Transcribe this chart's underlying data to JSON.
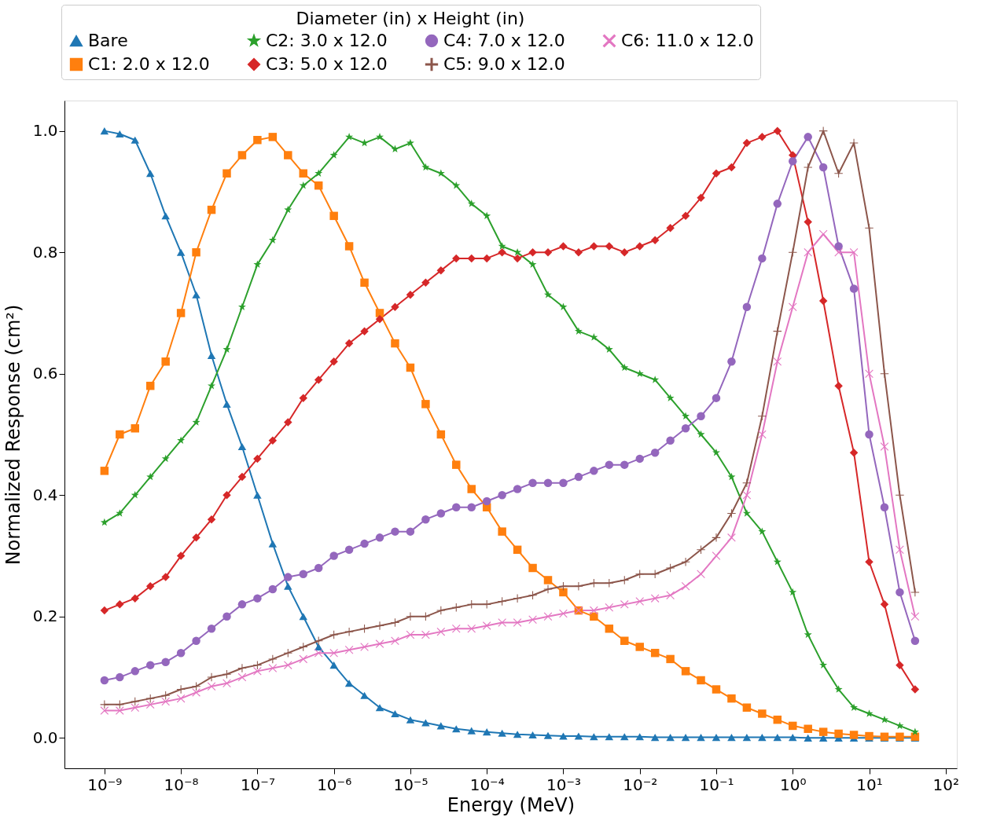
{
  "chart_data": {
    "type": "line",
    "xlabel": "Energy (MeV)",
    "ylabel": "Normalized Response (cm²)",
    "legend_title": "Diameter (in) x Height (in)",
    "log": "x",
    "grid": false,
    "legend": "top",
    "line_style": "solid",
    "xlim": [
      3e-10,
      140
    ],
    "ylim": [
      -0.05,
      1.05
    ],
    "xticks": [
      {
        "value": 1e-09,
        "label": "10⁻⁹"
      },
      {
        "value": 1e-08,
        "label": "10⁻⁸"
      },
      {
        "value": 1e-07,
        "label": "10⁻⁷"
      },
      {
        "value": 1e-06,
        "label": "10⁻⁶"
      },
      {
        "value": 1e-05,
        "label": "10⁻⁵"
      },
      {
        "value": 0.0001,
        "label": "10⁻⁴"
      },
      {
        "value": 0.001,
        "label": "10⁻³"
      },
      {
        "value": 0.01,
        "label": "10⁻²"
      },
      {
        "value": 0.1,
        "label": "10⁻¹"
      },
      {
        "value": 1,
        "label": "10⁰"
      },
      {
        "value": 10,
        "label": "10¹"
      },
      {
        "value": 100,
        "label": "10²"
      }
    ],
    "yticks": [
      {
        "value": 0,
        "label": "0.0"
      },
      {
        "value": 0.2,
        "label": "0.2"
      },
      {
        "value": 0.4,
        "label": "0.4"
      },
      {
        "value": 0.6,
        "label": "0.6"
      },
      {
        "value": 0.8,
        "label": "0.8"
      },
      {
        "value": 1,
        "label": "1.0"
      }
    ],
    "x": [
      1e-09,
      1.585e-09,
      2.512e-09,
      3.981e-09,
      6.31e-09,
      1e-08,
      1.585e-08,
      2.512e-08,
      3.981e-08,
      6.31e-08,
      1e-07,
      1.585e-07,
      2.512e-07,
      3.981e-07,
      6.31e-07,
      1e-06,
      1.585e-06,
      2.512e-06,
      3.981e-06,
      6.31e-06,
      1e-05,
      1.585e-05,
      2.512e-05,
      3.981e-05,
      6.31e-05,
      0.0001,
      0.0001585,
      0.0002512,
      0.0003981,
      0.000631,
      0.001,
      0.001585,
      0.002512,
      0.003981,
      0.00631,
      0.01,
      0.01585,
      0.02512,
      0.03981,
      0.0631,
      0.1,
      0.1585,
      0.2512,
      0.3981,
      0.631,
      1,
      1.585,
      2.512,
      3.981,
      6.31,
      10,
      15.85,
      25.12,
      39.81
    ],
    "series": [
      {
        "name": "Bare",
        "color": "#1f77b4",
        "marker": "triangle",
        "values": [
          1.0,
          0.995,
          0.985,
          0.93,
          0.86,
          0.8,
          0.73,
          0.63,
          0.55,
          0.48,
          0.4,
          0.32,
          0.25,
          0.2,
          0.15,
          0.12,
          0.09,
          0.07,
          0.05,
          0.04,
          0.03,
          0.025,
          0.02,
          0.015,
          0.012,
          0.01,
          0.008,
          0.006,
          0.005,
          0.004,
          0.003,
          0.003,
          0.002,
          0.002,
          0.002,
          0.002,
          0.001,
          0.001,
          0.001,
          0.001,
          0.001,
          0.001,
          0.001,
          0.001,
          0.001,
          0.001,
          0,
          0,
          0,
          0,
          0,
          0,
          0,
          0
        ]
      },
      {
        "name": "C1: 2.0 x 12.0",
        "color": "#ff7f0e",
        "marker": "square",
        "values": [
          0.44,
          0.5,
          0.51,
          0.58,
          0.62,
          0.7,
          0.8,
          0.87,
          0.93,
          0.96,
          0.985,
          0.99,
          0.96,
          0.93,
          0.91,
          0.86,
          0.81,
          0.75,
          0.7,
          0.65,
          0.61,
          0.55,
          0.5,
          0.45,
          0.41,
          0.38,
          0.34,
          0.31,
          0.28,
          0.26,
          0.24,
          0.21,
          0.2,
          0.18,
          0.16,
          0.15,
          0.14,
          0.13,
          0.11,
          0.095,
          0.08,
          0.065,
          0.05,
          0.04,
          0.03,
          0.02,
          0.015,
          0.01,
          0.007,
          0.005,
          0.003,
          0.002,
          0.002,
          0.002
        ]
      },
      {
        "name": "C2: 3.0 x 12.0",
        "color": "#2ca02c",
        "marker": "star",
        "values": [
          0.355,
          0.37,
          0.4,
          0.43,
          0.46,
          0.49,
          0.52,
          0.58,
          0.64,
          0.71,
          0.78,
          0.82,
          0.87,
          0.91,
          0.93,
          0.96,
          0.99,
          0.98,
          0.99,
          0.97,
          0.98,
          0.94,
          0.93,
          0.91,
          0.88,
          0.86,
          0.81,
          0.8,
          0.78,
          0.73,
          0.71,
          0.67,
          0.66,
          0.64,
          0.61,
          0.6,
          0.59,
          0.56,
          0.53,
          0.5,
          0.47,
          0.43,
          0.37,
          0.34,
          0.29,
          0.24,
          0.17,
          0.12,
          0.08,
          0.05,
          0.04,
          0.03,
          0.02,
          0.01
        ]
      },
      {
        "name": "C3: 5.0 x 12.0",
        "color": "#d62728",
        "marker": "diamond",
        "values": [
          0.21,
          0.22,
          0.23,
          0.25,
          0.265,
          0.3,
          0.33,
          0.36,
          0.4,
          0.43,
          0.46,
          0.49,
          0.52,
          0.56,
          0.59,
          0.62,
          0.65,
          0.67,
          0.69,
          0.71,
          0.73,
          0.75,
          0.77,
          0.79,
          0.79,
          0.79,
          0.8,
          0.79,
          0.8,
          0.8,
          0.81,
          0.8,
          0.81,
          0.81,
          0.8,
          0.81,
          0.82,
          0.84,
          0.86,
          0.89,
          0.93,
          0.94,
          0.98,
          0.99,
          1.0,
          0.96,
          0.85,
          0.72,
          0.58,
          0.47,
          0.29,
          0.22,
          0.12,
          0.08
        ]
      },
      {
        "name": "C4: 7.0 x 12.0",
        "color": "#9467bd",
        "marker": "circle",
        "values": [
          0.095,
          0.1,
          0.11,
          0.12,
          0.125,
          0.14,
          0.16,
          0.18,
          0.2,
          0.22,
          0.23,
          0.245,
          0.265,
          0.27,
          0.28,
          0.3,
          0.31,
          0.32,
          0.33,
          0.34,
          0.34,
          0.36,
          0.37,
          0.38,
          0.38,
          0.39,
          0.4,
          0.41,
          0.42,
          0.42,
          0.42,
          0.43,
          0.44,
          0.45,
          0.45,
          0.46,
          0.47,
          0.49,
          0.51,
          0.53,
          0.56,
          0.62,
          0.71,
          0.79,
          0.88,
          0.95,
          0.99,
          0.94,
          0.81,
          0.74,
          0.5,
          0.38,
          0.24,
          0.16
        ]
      },
      {
        "name": "C5: 9.0 x 12.0",
        "color": "#8c564b",
        "marker": "cross",
        "values": [
          0.055,
          0.055,
          0.06,
          0.065,
          0.07,
          0.08,
          0.085,
          0.1,
          0.105,
          0.115,
          0.12,
          0.13,
          0.14,
          0.15,
          0.16,
          0.17,
          0.175,
          0.18,
          0.185,
          0.19,
          0.2,
          0.2,
          0.21,
          0.215,
          0.22,
          0.22,
          0.225,
          0.23,
          0.235,
          0.245,
          0.25,
          0.25,
          0.255,
          0.255,
          0.26,
          0.27,
          0.27,
          0.28,
          0.29,
          0.31,
          0.33,
          0.37,
          0.42,
          0.53,
          0.67,
          0.8,
          0.94,
          1.0,
          0.93,
          0.98,
          0.84,
          0.6,
          0.4,
          0.24
        ]
      },
      {
        "name": "C6: 11.0 x 12.0",
        "color": "#e377c2",
        "marker": "x",
        "values": [
          0.045,
          0.045,
          0.05,
          0.055,
          0.06,
          0.065,
          0.075,
          0.085,
          0.09,
          0.1,
          0.11,
          0.115,
          0.12,
          0.13,
          0.14,
          0.14,
          0.145,
          0.15,
          0.155,
          0.16,
          0.17,
          0.17,
          0.175,
          0.18,
          0.18,
          0.185,
          0.19,
          0.19,
          0.195,
          0.2,
          0.205,
          0.21,
          0.21,
          0.215,
          0.22,
          0.225,
          0.23,
          0.235,
          0.25,
          0.27,
          0.3,
          0.33,
          0.4,
          0.5,
          0.62,
          0.71,
          0.8,
          0.83,
          0.8,
          0.8,
          0.6,
          0.48,
          0.31,
          0.2
        ]
      }
    ]
  }
}
